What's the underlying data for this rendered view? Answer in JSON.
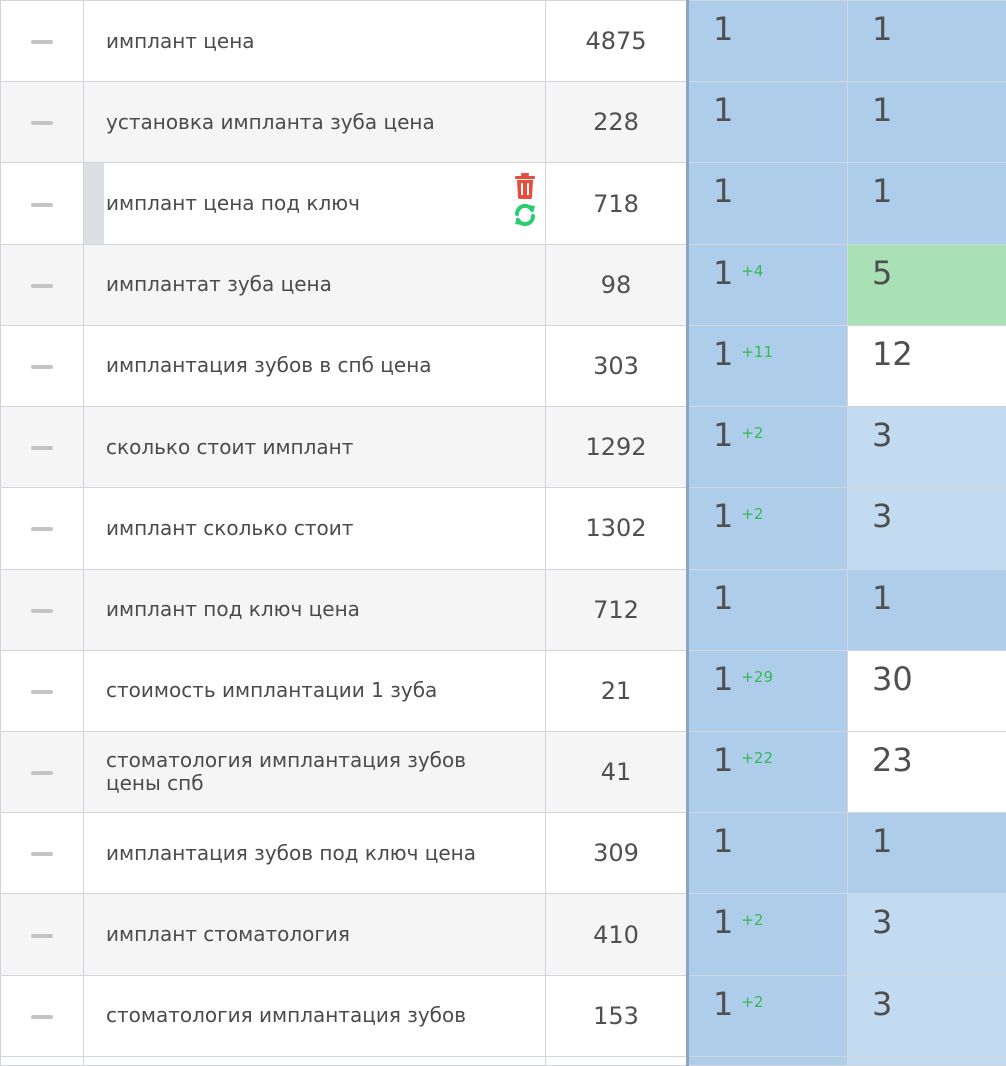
{
  "rows": [
    {
      "keyword": "имплант цена",
      "volume": "4875",
      "pos1": "1",
      "delta1": "",
      "pos2": "1",
      "cell2": "blue"
    },
    {
      "keyword": "установка импланта зуба цена",
      "volume": "228",
      "pos1": "1",
      "delta1": "",
      "pos2": "1",
      "cell2": "blue"
    },
    {
      "keyword": "имплант цена под ключ",
      "volume": "718",
      "pos1": "1",
      "delta1": "",
      "pos2": "1",
      "cell2": "blue",
      "editing": true
    },
    {
      "keyword": "имплантат зуба цена",
      "volume": "98",
      "pos1": "1",
      "delta1": "+4",
      "pos2": "5",
      "cell2": "green"
    },
    {
      "keyword": "имплантация зубов в спб цена",
      "volume": "303",
      "pos1": "1",
      "delta1": "+11",
      "pos2": "12",
      "cell2": "white"
    },
    {
      "keyword": "сколько стоит имплант",
      "volume": "1292",
      "pos1": "1",
      "delta1": "+2",
      "pos2": "3",
      "cell2": "lightblue"
    },
    {
      "keyword": "имплант сколько стоит",
      "volume": "1302",
      "pos1": "1",
      "delta1": "+2",
      "pos2": "3",
      "cell2": "lightblue"
    },
    {
      "keyword": "имплант под ключ цена",
      "volume": "712",
      "pos1": "1",
      "delta1": "",
      "pos2": "1",
      "cell2": "blue"
    },
    {
      "keyword": "стоимость имплантации 1 зуба",
      "volume": "21",
      "pos1": "1",
      "delta1": "+29",
      "pos2": "30",
      "cell2": "white"
    },
    {
      "keyword": "стоматология имплантация зубов цены спб",
      "volume": "41",
      "pos1": "1",
      "delta1": "+22",
      "pos2": "23",
      "cell2": "white"
    },
    {
      "keyword": "имплантация зубов под ключ цена",
      "volume": "309",
      "pos1": "1",
      "delta1": "",
      "pos2": "1",
      "cell2": "blue"
    },
    {
      "keyword": "имплант стоматология",
      "volume": "410",
      "pos1": "1",
      "delta1": "+2",
      "pos2": "3",
      "cell2": "lightblue"
    },
    {
      "keyword": "стоматология имплантация зубов",
      "volume": "153",
      "pos1": "1",
      "delta1": "+2",
      "pos2": "3",
      "cell2": "lightblue"
    }
  ],
  "icons": {
    "delete": "trash-icon",
    "refresh": "refresh-icon",
    "remove": "minus-icon"
  },
  "colors": {
    "pos_blue": "#aecdeb",
    "pos_lightblue": "#c3dbf0",
    "pos_green": "#a9e0b4",
    "delta_green": "#35b853",
    "trash_red": "#e74c3c",
    "refresh_green": "#2ecc71"
  }
}
